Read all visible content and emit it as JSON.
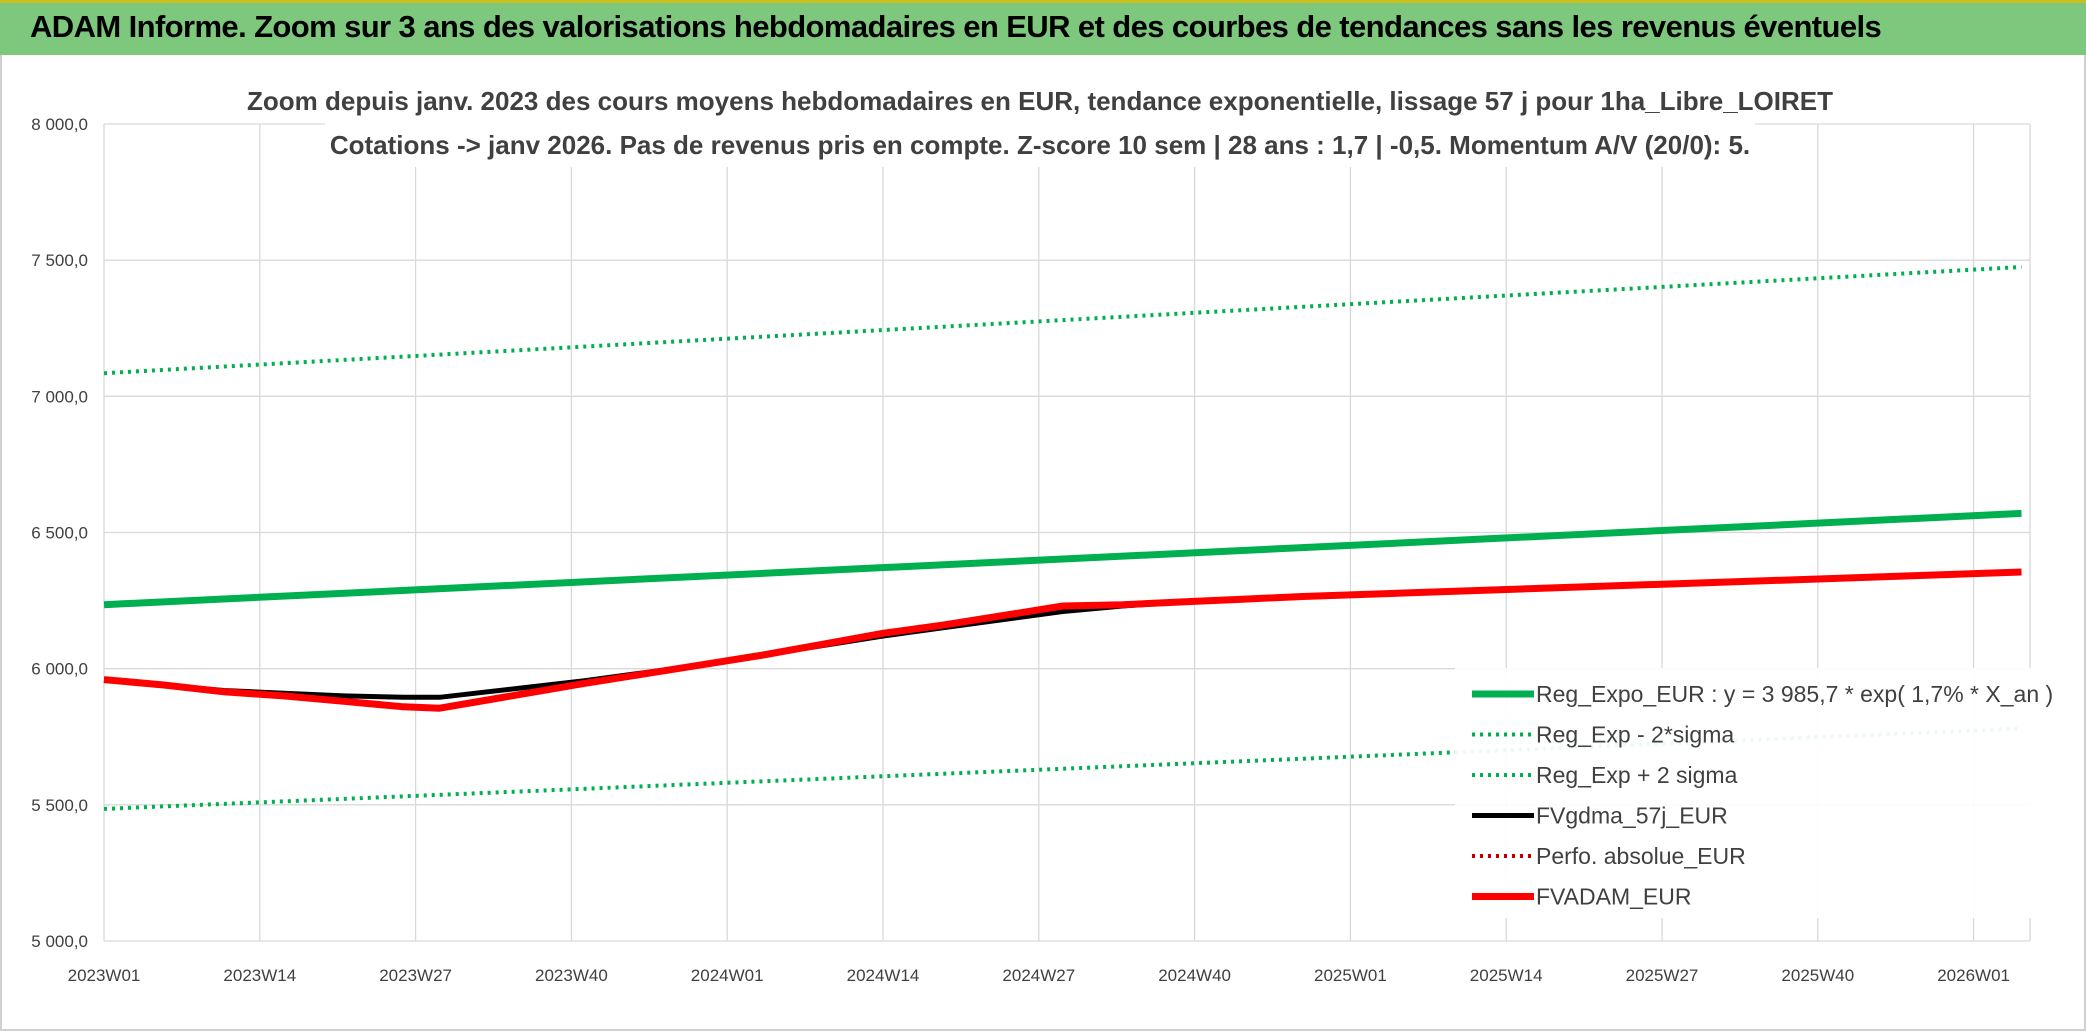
{
  "header": {
    "title": "ADAM Informe. Zoom sur 3 ans des valorisations hebdomadaires en EUR et des courbes de tendances sans les revenus éventuels"
  },
  "chart_data": {
    "type": "line",
    "title": "Zoom depuis janv. 2023 des cours moyens hebdomadaires en EUR, tendance exponentielle, lissage 57 j pour 1ha_Libre_LOIRET",
    "subtitle": "Cotations -> janv 2026. Pas de revenus pris en compte. Z-score 10 sem | 28 ans : 1,7 | -0,5. Momentum A/V (20/0): 5.",
    "xlabel": "",
    "ylabel": "",
    "x_ticks": [
      "2023W01",
      "2023W14",
      "2023W27",
      "2023W40",
      "2024W01",
      "2024W14",
      "2024W27",
      "2024W40",
      "2025W01",
      "2025W14",
      "2025W27",
      "2025W40",
      "2026W01"
    ],
    "y_ticks": [
      "5 000,0",
      "5 500,0",
      "6 000,0",
      "6 500,0",
      "7 000,0",
      "7 500,0",
      "8 000,0"
    ],
    "ylim": [
      5000,
      8000
    ],
    "x_range_weeks": [
      0,
      160
    ],
    "grid": true,
    "legend_position": "bottom-right",
    "series": [
      {
        "name": "Reg_Expo_EUR : y = 3 985,7 * exp( 1,7% *  X_an )",
        "color": "#00b050",
        "style": "solid-thick",
        "x": [
          0,
          160
        ],
        "y": [
          6235,
          6570
        ]
      },
      {
        "name": "Reg_Exp - 2*sigma",
        "color": "#00b050",
        "style": "dotted",
        "x": [
          0,
          160
        ],
        "y": [
          5485,
          5780
        ]
      },
      {
        "name": "Reg_Exp + 2 sigma",
        "color": "#00b050",
        "style": "dotted",
        "x": [
          0,
          160
        ],
        "y": [
          7085,
          7475
        ]
      },
      {
        "name": "FVgdma_57j_EUR",
        "color": "#000000",
        "style": "solid",
        "x": [
          0,
          5,
          10,
          15,
          20,
          25,
          28,
          32,
          36,
          40,
          45,
          50,
          55,
          60,
          65,
          70,
          75,
          80,
          85,
          90,
          95,
          100,
          110,
          120,
          130,
          140,
          150,
          160
        ],
        "y": [
          5960,
          5940,
          5920,
          5910,
          5900,
          5895,
          5895,
          5915,
          5935,
          5955,
          5985,
          6015,
          6050,
          6085,
          6120,
          6150,
          6180,
          6210,
          6230,
          6245,
          6255,
          6265,
          6280,
          6295,
          6310,
          6325,
          6340,
          6355
        ]
      },
      {
        "name": "Perfo. absolue_EUR",
        "color": "#c00000",
        "style": "dotted",
        "x": [],
        "y": []
      },
      {
        "name": "FVADAM_EUR",
        "color": "#ff0000",
        "style": "solid-thick",
        "x": [
          0,
          5,
          10,
          15,
          20,
          25,
          28,
          32,
          36,
          40,
          45,
          50,
          55,
          60,
          65,
          70,
          75,
          80,
          85,
          90,
          95,
          100,
          110,
          120,
          130,
          140,
          150,
          160
        ],
        "y": [
          5960,
          5940,
          5915,
          5900,
          5880,
          5860,
          5855,
          5885,
          5915,
          5945,
          5980,
          6015,
          6050,
          6090,
          6130,
          6160,
          6195,
          6230,
          6235,
          6245,
          6255,
          6265,
          6280,
          6295,
          6310,
          6325,
          6340,
          6355
        ]
      }
    ]
  }
}
